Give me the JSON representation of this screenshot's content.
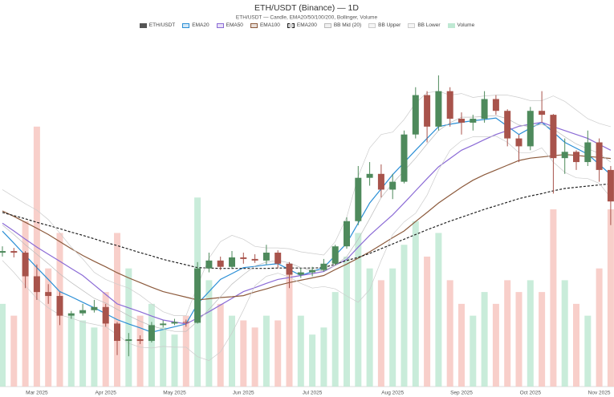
{
  "chart_data": {
    "type": "candlestick",
    "title": "ETH/USDT (Binance) — 1D",
    "subtitle": "ETH/USDT — Candle, EMA20/50/100/200, Bollinger, Volume",
    "categories": [
      null,
      null,
      null,
      "Mar 2025",
      null,
      null,
      null,
      null,
      null,
      "Apr 2025",
      null,
      null,
      null,
      null,
      null,
      "May 2025",
      null,
      null,
      null,
      null,
      null,
      "Jun 2025",
      null,
      null,
      null,
      null,
      null,
      "Jul 2025",
      null,
      null,
      null,
      null,
      null,
      null,
      "Aug 2025",
      null,
      null,
      null,
      null,
      null,
      "Sep 2025",
      null,
      null,
      null,
      null,
      null,
      "Oct 2025",
      null,
      null,
      null,
      null,
      null,
      "Nov 2025",
      null
    ],
    "ylim": [
      1000,
      5500
    ],
    "y2lim": [
      0,
      1500000
    ],
    "series": [
      {
        "name": "ETH/USDT",
        "type": "candlestick",
        "color": "#555555",
        "up_color": "#4e8a5c",
        "down_color": "#a8534b",
        "open": [
          2700,
          2720,
          2700,
          2400,
          2200,
          2150,
          1900,
          1930,
          1970,
          2010,
          1800,
          1580,
          1600,
          1580,
          1780,
          1800,
          1820,
          1810,
          2500,
          2600,
          2520,
          2640,
          2620,
          2600,
          2700,
          2560,
          2420,
          2450,
          2480,
          2560,
          2780,
          3100,
          3650,
          3700,
          3500,
          3600,
          4200,
          4700,
          4300,
          4750,
          4400,
          4350,
          4400,
          4650,
          4500,
          4150,
          4050,
          4500,
          4450,
          3900,
          3980,
          3850,
          4100,
          3750
        ],
        "high": [
          2780,
          2760,
          2720,
          2550,
          2300,
          2200,
          1960,
          2050,
          2100,
          2050,
          1820,
          1680,
          1650,
          1820,
          1840,
          1860,
          1850,
          2580,
          2700,
          2650,
          2720,
          2700,
          2680,
          2800,
          2730,
          2580,
          2500,
          2520,
          2620,
          2800,
          3150,
          3800,
          3850,
          3820,
          3700,
          4250,
          4800,
          4750,
          4950,
          4800,
          4480,
          4450,
          4750,
          4700,
          4520,
          4200,
          4550,
          4750,
          4460,
          4150,
          4000,
          4250,
          4150,
          3800
        ],
        "low": [
          2650,
          2640,
          2250,
          2100,
          2050,
          1780,
          1860,
          1900,
          1940,
          1760,
          1400,
          1385,
          1540,
          1560,
          1750,
          1780,
          1760,
          1800,
          2450,
          2480,
          2500,
          2560,
          2570,
          2550,
          2500,
          2250,
          2380,
          2400,
          2460,
          2540,
          2750,
          3050,
          3550,
          3400,
          3380,
          3580,
          4150,
          4100,
          4250,
          4300,
          4200,
          4250,
          4350,
          4450,
          4050,
          3850,
          4000,
          4350,
          3450,
          3700,
          3750,
          3800,
          3600,
          3050
        ],
        "close": [
          2720,
          2700,
          2400,
          2200,
          2150,
          1900,
          1930,
          1970,
          2010,
          1800,
          1580,
          1600,
          1580,
          1780,
          1800,
          1820,
          1810,
          2500,
          2600,
          2520,
          2640,
          2620,
          2600,
          2700,
          2560,
          2420,
          2450,
          2480,
          2560,
          2780,
          3100,
          3650,
          3700,
          3500,
          3600,
          4200,
          4700,
          4300,
          4750,
          4400,
          4350,
          4400,
          4650,
          4500,
          4150,
          4050,
          4500,
          4450,
          3900,
          3980,
          3850,
          4100,
          3750,
          3350
        ]
      },
      {
        "name": "EMA20",
        "type": "line",
        "color": "#2b8fd6",
        "values": [
          2973,
          2820,
          2665,
          2510,
          2360,
          2205,
          2140,
          2070,
          2000,
          1925,
          1850,
          1795,
          1745,
          1690,
          1725,
          1760,
          1795,
          2050,
          2205,
          2360,
          2435,
          2510,
          2525,
          2545,
          2560,
          2485,
          2410,
          2460,
          2510,
          2665,
          2820,
          3075,
          3330,
          3510,
          3690,
          3845,
          4000,
          4150,
          4300,
          4330,
          4355,
          4375,
          4390,
          4410,
          4305,
          4200,
          4280,
          4355,
          4230,
          4100,
          4025,
          3950,
          3820,
          3690
        ]
      },
      {
        "name": "EMA50",
        "type": "line",
        "color": "#8b6bd6",
        "values": [
          3075,
          2975,
          2870,
          2770,
          2680,
          2590,
          2500,
          2410,
          2290,
          2170,
          2050,
          2000,
          1950,
          1895,
          1845,
          1820,
          1795,
          1870,
          1950,
          2035,
          2120,
          2205,
          2255,
          2310,
          2360,
          2385,
          2410,
          2435,
          2460,
          2540,
          2615,
          2770,
          2920,
          3050,
          3180,
          3330,
          3485,
          3640,
          3790,
          3895,
          4000,
          4065,
          4135,
          4200,
          4250,
          4305,
          4330,
          4355,
          4300,
          4250,
          4200,
          4150,
          4075,
          4000
        ]
      },
      {
        "name": "EMA100",
        "type": "line",
        "color": "#8c5a3c",
        "values": [
          3230,
          3160,
          3085,
          3010,
          2930,
          2840,
          2750,
          2665,
          2590,
          2520,
          2445,
          2380,
          2320,
          2260,
          2205,
          2170,
          2135,
          2100,
          2115,
          2130,
          2140,
          2155,
          2200,
          2240,
          2285,
          2320,
          2350,
          2380,
          2410,
          2485,
          2555,
          2630,
          2710,
          2800,
          2890,
          2975,
          3095,
          3210,
          3330,
          3430,
          3530,
          3620,
          3690,
          3750,
          3810,
          3870,
          3900,
          3915,
          3930,
          3945,
          3935,
          3920,
          3910,
          3895
        ]
      },
      {
        "name": "EMA200",
        "type": "line",
        "color": "#222222",
        "dash": true,
        "values": [
          3210,
          3170,
          3130,
          3085,
          3045,
          3005,
          2960,
          2920,
          2875,
          2830,
          2790,
          2745,
          2700,
          2660,
          2615,
          2580,
          2545,
          2510,
          2505,
          2500,
          2500,
          2500,
          2500,
          2500,
          2505,
          2505,
          2505,
          2505,
          2510,
          2555,
          2600,
          2640,
          2690,
          2750,
          2810,
          2870,
          2930,
          2990,
          3045,
          3100,
          3150,
          3200,
          3250,
          3295,
          3340,
          3385,
          3420,
          3450,
          3485,
          3515,
          3530,
          3545,
          3560,
          3575
        ]
      },
      {
        "name": "BB Mid (20)",
        "type": "line",
        "color": "#bbbbbb",
        "values": [
          3050,
          2930,
          2800,
          2680,
          2560,
          2430,
          2320,
          2220,
          2120,
          2060,
          1980,
          1900,
          1830,
          1770,
          1730,
          1700,
          1700,
          1830,
          1980,
          2140,
          2300,
          2420,
          2530,
          2580,
          2600,
          2570,
          2510,
          2470,
          2470,
          2540,
          2650,
          2870,
          3130,
          3400,
          3580,
          3740,
          3900,
          4080,
          4250,
          4350,
          4420,
          4420,
          4430,
          4440,
          4400,
          4320,
          4300,
          4330,
          4270,
          4170,
          4080,
          4020,
          3960,
          3850
        ]
      },
      {
        "name": "BB Upper",
        "type": "line",
        "color": "#cccccc",
        "values": [
          3500,
          3410,
          3320,
          3240,
          3120,
          2950,
          2770,
          2620,
          2450,
          2360,
          2300,
          2250,
          2160,
          2050,
          1950,
          1900,
          1900,
          2280,
          2630,
          2840,
          2920,
          2870,
          2780,
          2760,
          2760,
          2750,
          2710,
          2690,
          2670,
          2840,
          3150,
          3670,
          4030,
          4200,
          4230,
          4390,
          4600,
          4730,
          4750,
          4700,
          4720,
          4670,
          4690,
          4700,
          4700,
          4670,
          4630,
          4630,
          4690,
          4620,
          4510,
          4400,
          4340,
          4300
        ]
      },
      {
        "name": "BB Lower",
        "type": "line",
        "color": "#cccccc",
        "values": [
          2600,
          2450,
          2280,
          2120,
          2000,
          1910,
          1870,
          1820,
          1790,
          1760,
          1660,
          1550,
          1500,
          1490,
          1510,
          1500,
          1500,
          1380,
          1330,
          1440,
          1680,
          1970,
          2280,
          2400,
          2440,
          2390,
          2310,
          2250,
          2270,
          2240,
          2150,
          2070,
          2230,
          2600,
          2930,
          3090,
          3200,
          3430,
          3750,
          4000,
          4120,
          4170,
          4170,
          4180,
          4100,
          3970,
          3970,
          4030,
          3850,
          3720,
          3650,
          3640,
          3580,
          3400
        ]
      },
      {
        "name": "Volume",
        "type": "bar",
        "axis": "y2",
        "color": "#bfe9d3",
        "down_color": "#f7c7c1",
        "values": [
          350000,
          300000,
          700000,
          1100000,
          500000,
          650000,
          300000,
          280000,
          250000,
          400000,
          650000,
          500000,
          300000,
          350000,
          250000,
          220000,
          300000,
          800000,
          450000,
          350000,
          300000,
          280000,
          250000,
          300000,
          280000,
          500000,
          300000,
          220000,
          250000,
          400000,
          550000,
          650000,
          500000,
          450000,
          500000,
          600000,
          700000,
          550000,
          650000,
          450000,
          350000,
          300000,
          400000,
          350000,
          450000,
          400000,
          450000,
          400000,
          750000,
          450000,
          350000,
          300000,
          500000,
          750000
        ]
      }
    ]
  }
}
